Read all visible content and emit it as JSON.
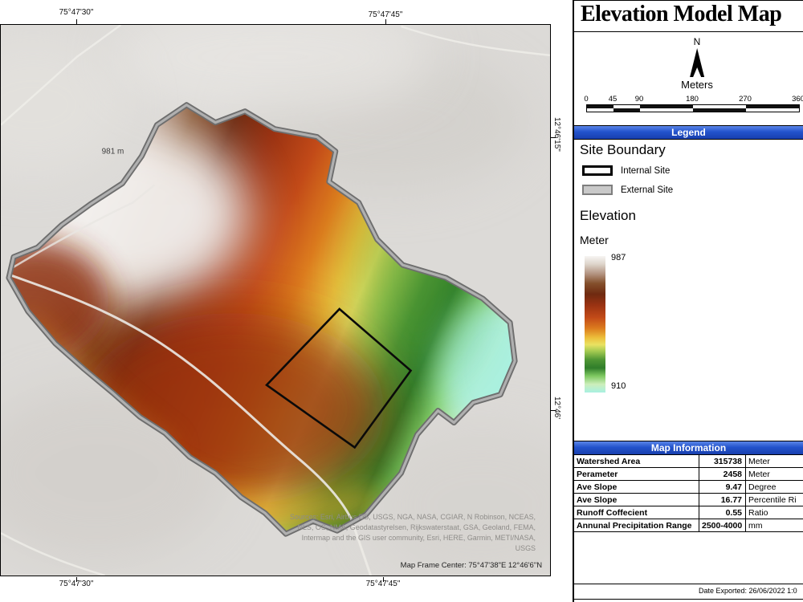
{
  "title": "Elevation Model Map",
  "map": {
    "coords": {
      "top_left": "75°47'30\"",
      "top_right": "75°47'45\"",
      "right_upper": "12°46'15\"",
      "right_lower": "12°46'",
      "bottom_left": "75°47'30\"",
      "bottom_right": "75°47'45\""
    },
    "spot_elevation": "981 m",
    "attribution_lines": [
      "Sources: Esri, Airbus DS, USGS, NGA, NASA, CGIAR, N Robinson, NCEAS,",
      "NLS, OS, NMA, Geodatastyrelsen, Rijkswaterstaat, GSA, Geoland, FEMA,",
      "Intermap and the GIS user community, Esri, HERE, Garmin, METI/NASA,",
      "USGS"
    ],
    "frame_center": "Map Frame Center: 75°47'38\"E 12°46'6\"N"
  },
  "north_arrow": {
    "label": "N"
  },
  "scalebar": {
    "unit_label": "Meters",
    "ticks": [
      "0",
      "45",
      "90",
      "180",
      "270",
      "360"
    ]
  },
  "legend": {
    "header": "Legend",
    "site_boundary": {
      "heading": "Site Boundary",
      "items": [
        {
          "label": "Internal Site"
        },
        {
          "label": "External Site"
        }
      ]
    },
    "elevation": {
      "heading": "Elevation",
      "unit": "Meter",
      "max": "987",
      "min": "910",
      "ramp": [
        [
          0.0,
          "#f7f5f3"
        ],
        [
          0.06,
          "#ddd4ca"
        ],
        [
          0.13,
          "#b39481"
        ],
        [
          0.2,
          "#84502c"
        ],
        [
          0.28,
          "#6f2a10"
        ],
        [
          0.36,
          "#9a3212"
        ],
        [
          0.45,
          "#c24a18"
        ],
        [
          0.53,
          "#dc7c1e"
        ],
        [
          0.6,
          "#edc03c"
        ],
        [
          0.65,
          "#e9e262"
        ],
        [
          0.7,
          "#a0c850"
        ],
        [
          0.76,
          "#4f9634"
        ],
        [
          0.82,
          "#2f7d2a"
        ],
        [
          0.88,
          "#80ca62"
        ],
        [
          0.94,
          "#cceebb"
        ],
        [
          1.0,
          "#a8f0e1"
        ]
      ]
    }
  },
  "map_information": {
    "header": "Map Information",
    "rows": [
      {
        "label": "Watershed Area",
        "value": "315738",
        "unit": "Meter"
      },
      {
        "label": "Perameter",
        "value": "2458",
        "unit": "Meter"
      },
      {
        "label": "Ave Slope",
        "value": "9.47",
        "unit": "Degree"
      },
      {
        "label": "Ave Slope",
        "value": "16.77",
        "unit": "Percentile Ri"
      },
      {
        "label": "Runoff Coffecient",
        "value": "0.55",
        "unit": "Ratio"
      },
      {
        "label": "Annunal Precipitation Range",
        "value": "2500-4000",
        "unit": "mm"
      }
    ]
  },
  "footer": {
    "date_exported": "Date Exported: 26/06/2022 1:0"
  },
  "colors": {
    "header_blue": "#2353cc",
    "external_boundary_gray": "#8c8c8c",
    "internal_boundary_black": "#000000",
    "background_gray": "#dcdad7"
  }
}
